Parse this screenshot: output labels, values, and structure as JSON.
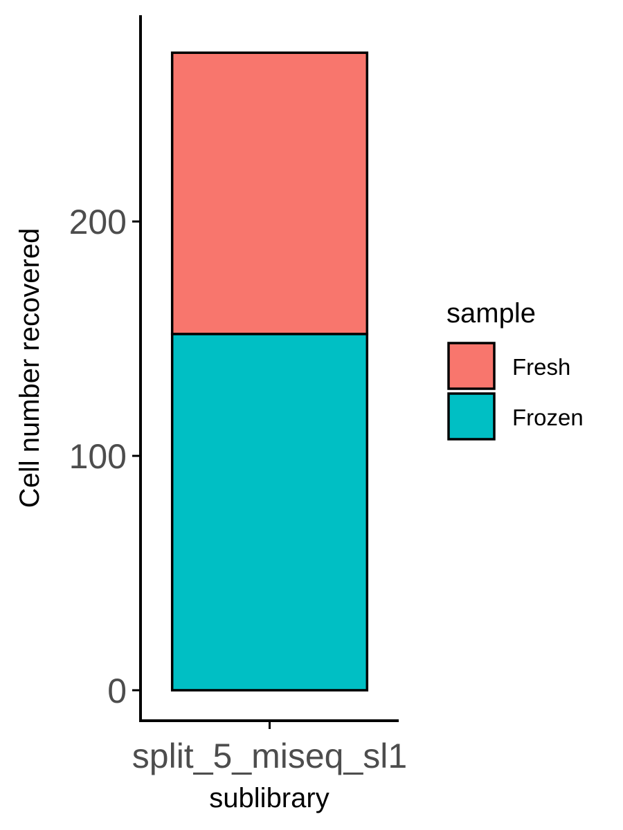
{
  "chart_data": {
    "type": "bar",
    "stacked": true,
    "categories": [
      "split_5_miseq_sl1"
    ],
    "series": [
      {
        "name": "Frozen",
        "values": [
          152
        ],
        "color": "#00BFC4"
      },
      {
        "name": "Fresh",
        "values": [
          120
        ],
        "color": "#F8766D"
      }
    ],
    "xlabel": "sublibrary",
    "ylabel": "Cell number recovered",
    "yticks": [
      0,
      100,
      200
    ],
    "ylim": [
      -13,
      288
    ],
    "grid": false,
    "legend": {
      "title": "sample",
      "position": "right",
      "items": [
        "Fresh",
        "Frozen"
      ]
    }
  }
}
